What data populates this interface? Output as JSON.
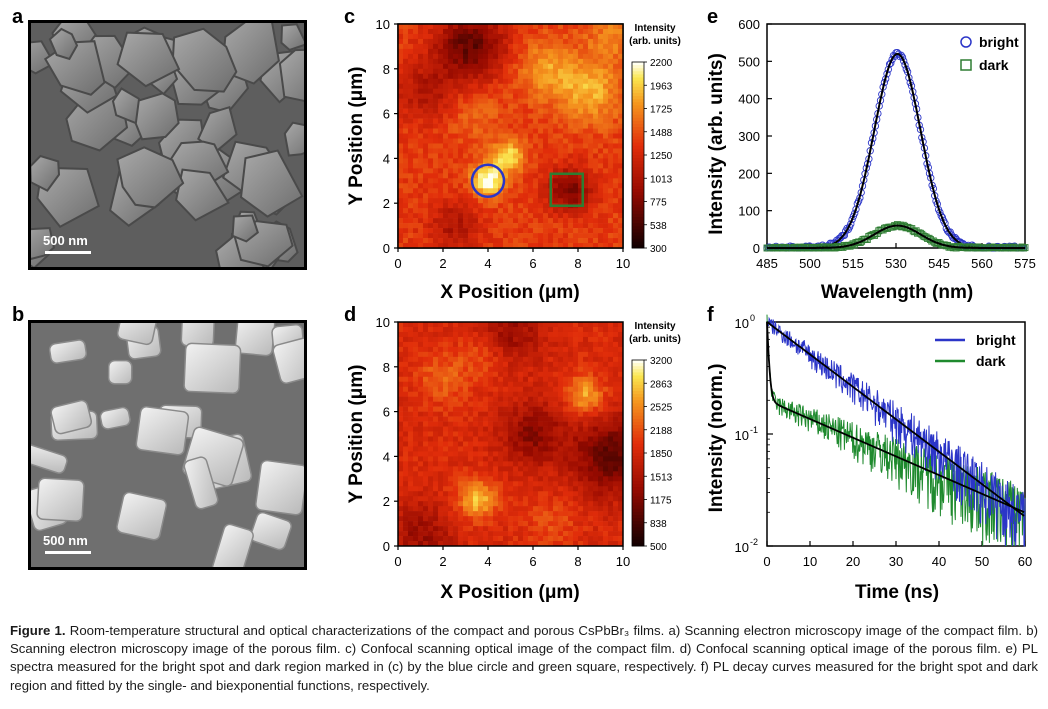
{
  "panels": {
    "a": {
      "label": "a",
      "scale_text": "500 nm"
    },
    "b": {
      "label": "b",
      "scale_text": "500 nm"
    },
    "c": {
      "label": "c"
    },
    "d": {
      "label": "d"
    },
    "e": {
      "label": "e"
    },
    "f": {
      "label": "f"
    }
  },
  "chart_data": [
    {
      "panel": "c",
      "type": "heatmap",
      "xlabel": "X Position (μm)",
      "ylabel": "Y Position (μm)",
      "xlim": [
        0,
        10
      ],
      "ylim": [
        0,
        10
      ],
      "xticks": [
        "0",
        "2",
        "4",
        "6",
        "8",
        "10"
      ],
      "yticks": [
        "0",
        "2",
        "4",
        "6",
        "8",
        "10"
      ],
      "colorbar_title_1": "Intensity",
      "colorbar_title_2": "(arb. units)",
      "colorbar_ticks": [
        "2200",
        "1963",
        "1725",
        "1488",
        "1250",
        "1013",
        "775",
        "538",
        "300"
      ],
      "colorbar_range": [
        300,
        2200
      ],
      "markers": [
        {
          "shape": "circle",
          "x": 4.0,
          "y": 3.0,
          "color": "#2b35c8"
        },
        {
          "shape": "square",
          "x": 7.5,
          "y": 2.6,
          "color": "#2e7d32"
        }
      ]
    },
    {
      "panel": "d",
      "type": "heatmap",
      "xlabel": "X Position (μm)",
      "ylabel": "Y Position (μm)",
      "xlim": [
        0,
        10
      ],
      "ylim": [
        0,
        10
      ],
      "xticks": [
        "0",
        "2",
        "4",
        "6",
        "8",
        "10"
      ],
      "yticks": [
        "0",
        "2",
        "4",
        "6",
        "8",
        "10"
      ],
      "colorbar_title_1": "Intensity",
      "colorbar_title_2": "(arb. units)",
      "colorbar_ticks": [
        "3200",
        "2863",
        "2525",
        "2188",
        "1850",
        "1513",
        "1175",
        "838",
        "500"
      ],
      "colorbar_range": [
        500,
        3200
      ]
    },
    {
      "panel": "e",
      "type": "line",
      "xlabel": "Wavelength (nm)",
      "ylabel": "Intensity (arb. units)",
      "xlim": [
        485,
        575
      ],
      "ylim": [
        0,
        600
      ],
      "xticks": [
        "485",
        "500",
        "515",
        "530",
        "545",
        "560",
        "575"
      ],
      "yticks": [
        "0",
        "100",
        "200",
        "300",
        "400",
        "500",
        "600"
      ],
      "legend_position": "top-right",
      "series": [
        {
          "name": "bright",
          "marker": "circle",
          "color": "#2b35c8",
          "peak_center": 530.5,
          "peak_height": 520,
          "fwhm": 19,
          "fit_color": "#000000"
        },
        {
          "name": "dark",
          "marker": "square",
          "color": "#2e7d32",
          "peak_center": 530.5,
          "peak_height": 60,
          "fwhm": 19,
          "fit_color": "#000000"
        }
      ]
    },
    {
      "panel": "f",
      "type": "line",
      "xlabel": "Time (ns)",
      "ylabel": "Intensity (norm.)",
      "xlim": [
        0,
        60
      ],
      "ylim": [
        0.01,
        1
      ],
      "yscale": "log",
      "xticks": [
        "0",
        "10",
        "20",
        "30",
        "40",
        "50",
        "60"
      ],
      "yticks": [
        "10",
        "10",
        "10"
      ],
      "ytick_exponents": [
        "0",
        "-1",
        "-2"
      ],
      "legend_position": "top-right",
      "series": [
        {
          "name": "bright",
          "color": "#2b35c8",
          "fit": "single-exponential",
          "tau_ns": 15
        },
        {
          "name": "dark",
          "color": "#1f8a2e",
          "fit": "biexponential",
          "a1": 0.8,
          "tau1_ns": 0.4,
          "a2": 0.2,
          "tau2_ns": 26
        }
      ]
    }
  ],
  "caption": {
    "lead": "Figure 1.",
    "text": "Room-temperature structural and optical characterizations of the compact and porous CsPbBr₃ films. a) Scanning electron microscopy image of the compact film. b) Scanning electron microscopy image of the porous film. c) Confocal scanning optical image of the compact film. d) Confocal scanning optical image of the porous film. e) PL spectra measured for the bright spot and dark region marked in (c) by the blue circle and green square, respectively. f) PL decay curves measured for the bright spot and dark region and fitted by the single- and biexponential functions, respectively."
  }
}
